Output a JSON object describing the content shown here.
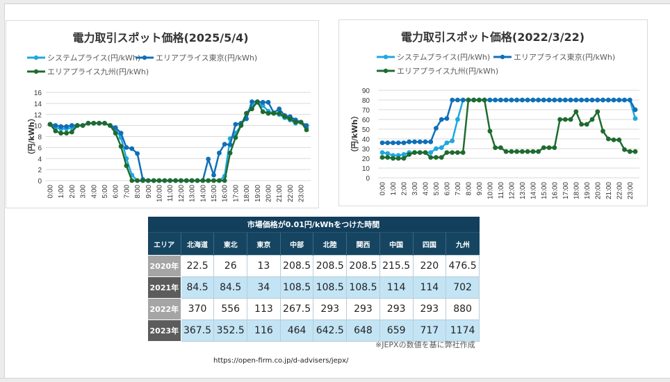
{
  "chart_data": [
    {
      "type": "line",
      "title": "電力取引スポット価格(2025/5/4)",
      "xlabel": "",
      "ylabel": "（円/kWh）",
      "ylim": [
        0,
        16
      ],
      "yticks": [
        0,
        2,
        4,
        6,
        8,
        10,
        12,
        14,
        16
      ],
      "grid": true,
      "legend_position": "top",
      "x": [
        "0:00",
        "0:30",
        "1:00",
        "1:30",
        "2:00",
        "2:30",
        "3:00",
        "3:30",
        "4:00",
        "4:30",
        "5:00",
        "5:30",
        "6:00",
        "6:30",
        "7:00",
        "7:30",
        "8:00",
        "8:30",
        "9:00",
        "9:30",
        "10:00",
        "10:30",
        "11:00",
        "11:30",
        "12:00",
        "12:30",
        "13:00",
        "13:30",
        "14:00",
        "14:30",
        "15:00",
        "15:30",
        "16:00",
        "16:30",
        "17:00",
        "17:30",
        "18:00",
        "18:30",
        "19:00",
        "19:30",
        "20:00",
        "20:30",
        "21:00",
        "21:30",
        "22:00",
        "22:30",
        "23:00",
        "23:30"
      ],
      "xtick_labels": [
        "0:00",
        "1:00",
        "2:00",
        "3:00",
        "4:00",
        "5:00",
        "6:00",
        "7:00",
        "8:00",
        "9:00",
        "10:00",
        "11:00",
        "12:00",
        "13:00",
        "14:00",
        "15:00",
        "16:00",
        "17:00",
        "18:00",
        "19:00",
        "20:00",
        "21:00",
        "22:00",
        "23:00"
      ],
      "series": [
        {
          "name": "システムプライス(円/kWh)",
          "color": "#1fa7e0",
          "values": [
            10.2,
            9.6,
            9.4,
            9.4,
            9.6,
            10.0,
            10.0,
            10.4,
            10.4,
            10.4,
            10.4,
            10.0,
            9.2,
            7.8,
            4.0,
            1.0,
            0,
            0,
            0,
            0,
            0,
            0,
            0,
            0,
            0,
            0,
            0,
            0,
            0,
            0,
            0,
            0,
            0.8,
            7.6,
            8.6,
            10.0,
            12.2,
            13.6,
            14.2,
            13.6,
            12.6,
            12.2,
            12.0,
            11.4,
            11.0,
            10.4,
            10.6,
            9.6
          ]
        },
        {
          "name": "エリアプライス東京(円/kWh)",
          "color": "#0f6fb8",
          "values": [
            10.2,
            10.0,
            9.8,
            9.8,
            10.0,
            10.0,
            10.0,
            10.4,
            10.4,
            10.4,
            10.4,
            10.0,
            9.6,
            8.6,
            6.0,
            5.8,
            4.9,
            0.2,
            0,
            0,
            0,
            0,
            0,
            0,
            0,
            0,
            0,
            0,
            0,
            3.9,
            1.0,
            5.0,
            6.6,
            6.5,
            10.2,
            10.4,
            11.2,
            14.3,
            14.3,
            14.2,
            14.2,
            12.3,
            13.0,
            11.8,
            11.6,
            11.0,
            10.6,
            10.0
          ]
        },
        {
          "name": "エリアプライス九州(円/kWh)",
          "color": "#1e6b2e",
          "values": [
            10.2,
            9.0,
            8.6,
            8.6,
            8.8,
            10.0,
            10.0,
            10.4,
            10.4,
            10.4,
            10.4,
            10.0,
            8.6,
            6.2,
            2.7,
            0,
            0,
            0,
            0,
            0,
            0,
            0,
            0,
            0,
            0,
            0,
            0,
            0,
            0,
            0,
            0,
            0,
            0,
            5.0,
            7.8,
            10.0,
            12.2,
            13.0,
            14.3,
            12.5,
            12.2,
            12.2,
            12.2,
            11.6,
            11.2,
            10.6,
            10.6,
            9.2
          ]
        }
      ]
    },
    {
      "type": "line",
      "title": "電力取引スポット価格(2022/3/22)",
      "xlabel": "",
      "ylabel": "（円/kWh）",
      "ylim": [
        0,
        90
      ],
      "yticks": [
        0,
        10,
        20,
        30,
        40,
        50,
        60,
        70,
        80,
        90
      ],
      "grid": true,
      "legend_position": "top",
      "x": [
        "0:00",
        "0:30",
        "1:00",
        "1:30",
        "2:00",
        "2:30",
        "3:00",
        "3:30",
        "4:00",
        "4:30",
        "5:00",
        "5:30",
        "6:00",
        "6:30",
        "7:00",
        "7:30",
        "8:00",
        "8:30",
        "9:00",
        "9:30",
        "10:00",
        "10:30",
        "11:00",
        "11:30",
        "12:00",
        "12:30",
        "13:00",
        "13:30",
        "14:00",
        "14:30",
        "15:00",
        "15:30",
        "16:00",
        "16:30",
        "17:00",
        "17:30",
        "18:00",
        "18:30",
        "19:00",
        "19:30",
        "20:00",
        "20:30",
        "21:00",
        "21:30",
        "22:00",
        "22:30",
        "23:00",
        "23:30"
      ],
      "xtick_labels": [
        "0:00",
        "1:00",
        "2:00",
        "3:00",
        "4:00",
        "5:00",
        "6:00",
        "7:00",
        "8:00",
        "9:00",
        "10:00",
        "11:00",
        "12:00",
        "13:00",
        "14:00",
        "15:00",
        "16:00",
        "17:00",
        "18:00",
        "19:00",
        "20:00",
        "21:00",
        "22:00",
        "23:00"
      ],
      "series": [
        {
          "name": "システムプライス(円/kWh)",
          "color": "#1fa7e0",
          "values": [
            26,
            25,
            23,
            23,
            24,
            26,
            26,
            26,
            26,
            26,
            30,
            31,
            36,
            38,
            60,
            80,
            80,
            80,
            80,
            80,
            80,
            80,
            80,
            80,
            80,
            80,
            80,
            80,
            80,
            80,
            80,
            80,
            80,
            80,
            80,
            80,
            80,
            80,
            80,
            80,
            80,
            80,
            80,
            80,
            80,
            80,
            80,
            61
          ]
        },
        {
          "name": "エリアプライス東京(円/kWh)",
          "color": "#0f6fb8",
          "values": [
            36,
            36,
            36,
            36,
            36,
            37,
            37,
            37,
            37,
            37,
            51,
            60,
            61,
            80,
            80,
            80,
            80,
            80,
            80,
            80,
            80,
            80,
            80,
            80,
            80,
            80,
            80,
            80,
            80,
            80,
            80,
            80,
            80,
            80,
            80,
            80,
            80,
            80,
            80,
            80,
            80,
            80,
            80,
            80,
            80,
            80,
            80,
            70
          ]
        },
        {
          "name": "エリアプライス九州(円/kWh)",
          "color": "#1e6b2e",
          "values": [
            21,
            21,
            20,
            20,
            20,
            24,
            26,
            26,
            26,
            21,
            21,
            21,
            26,
            26,
            26,
            26,
            80,
            80,
            80,
            80,
            48,
            31,
            31,
            27,
            27,
            27,
            27,
            27,
            27,
            27,
            31,
            31,
            31,
            60,
            60,
            60,
            68,
            55,
            55,
            60,
            68,
            48,
            40,
            39,
            39,
            29,
            27,
            27
          ]
        }
      ]
    }
  ],
  "table": {
    "title": "市場価格が0.01円/kWhをつけた時間",
    "columns": [
      "エリア",
      "北海道",
      "東北",
      "東京",
      "中部",
      "北陸",
      "関西",
      "中国",
      "四国",
      "九州"
    ],
    "rows": [
      {
        "year": "2020年",
        "values": [
          "22.5",
          "26",
          "13",
          "208.5",
          "208.5",
          "208.5",
          "215.5",
          "220",
          "476.5"
        ]
      },
      {
        "year": "2021年",
        "values": [
          "84.5",
          "84.5",
          "34",
          "108.5",
          "108.5",
          "108.5",
          "114",
          "114",
          "702"
        ]
      },
      {
        "year": "2022年",
        "values": [
          "370",
          "556",
          "113",
          "267.5",
          "293",
          "293",
          "293",
          "293",
          "880"
        ]
      },
      {
        "year": "2023年",
        "values": [
          "367.5",
          "352.5",
          "116",
          "464",
          "642.5",
          "648",
          "659",
          "717",
          "1174"
        ]
      }
    ],
    "note": "※JEPXの数値を基に弊社作成"
  },
  "source_url": "https://open-firm.co.jp/d-advisers/jepx/"
}
